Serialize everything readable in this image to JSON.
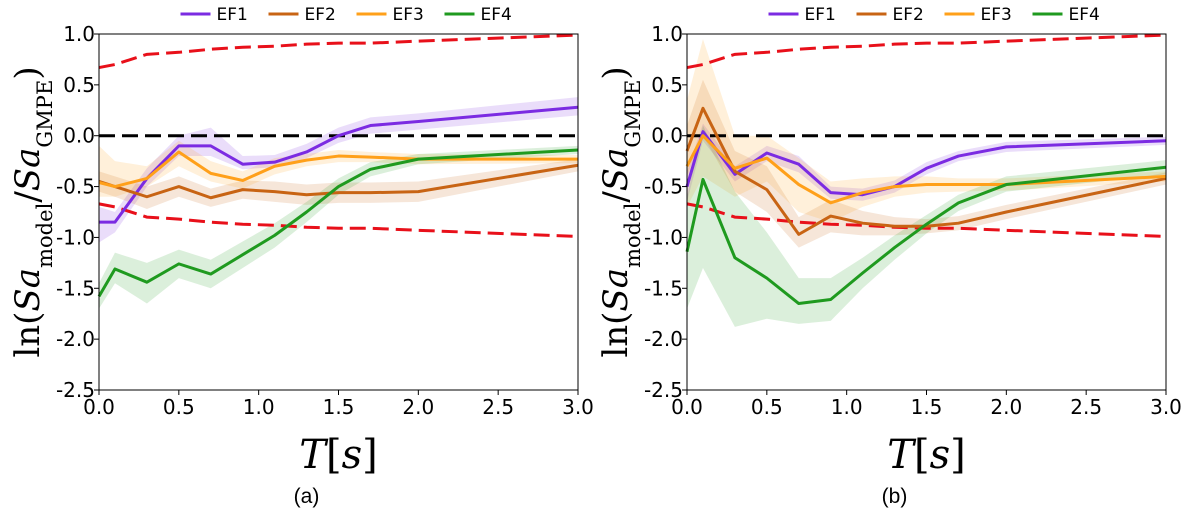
{
  "chart_data": [
    {
      "type": "line",
      "caption": "(a)",
      "xlabel": [
        {
          "text": "T",
          "italic": true
        },
        {
          "text": "["
        },
        {
          "text": "s",
          "italic": true
        },
        {
          "text": "]"
        }
      ],
      "ylabel": [
        {
          "text": "ln("
        },
        {
          "text": "Sa",
          "italic": true
        },
        {
          "text": "model",
          "sub": true
        },
        {
          "text": "/"
        },
        {
          "text": "Sa",
          "italic": true
        },
        {
          "text": "GMPE",
          "sub": true
        },
        {
          "text": ")"
        }
      ],
      "legend": "top",
      "xlim": [
        0,
        3
      ],
      "ylim": [
        -2.5,
        1.0
      ],
      "xticks": [
        {
          "value": 0,
          "label": "0.0"
        },
        {
          "value": 0.5,
          "label": "0.5"
        },
        {
          "value": 1,
          "label": "1.0"
        },
        {
          "value": 1.5,
          "label": "1.5"
        },
        {
          "value": 2,
          "label": "2.0"
        },
        {
          "value": 2.5,
          "label": "2.5"
        },
        {
          "value": 3,
          "label": "3.0"
        }
      ],
      "yticks": [
        {
          "value": -2.5,
          "label": "-2.5"
        },
        {
          "value": -2,
          "label": "-2.0"
        },
        {
          "value": -1.5,
          "label": "-1.5"
        },
        {
          "value": -1,
          "label": "-1.0"
        },
        {
          "value": -0.5,
          "label": "-0.5"
        },
        {
          "value": 0,
          "label": "0.0"
        },
        {
          "value": 0.5,
          "label": "0.5"
        },
        {
          "value": 1,
          "label": "1.0"
        }
      ],
      "x": [
        0,
        0.1,
        0.3,
        0.5,
        0.7,
        0.9,
        1.1,
        1.3,
        1.5,
        1.7,
        2.0,
        3.0
      ],
      "hline": {
        "value": 0,
        "color": "#000000"
      },
      "reference_lines": [
        {
          "color": "#e8101a",
          "values": [
            0.67,
            0.7,
            0.8,
            0.82,
            0.85,
            0.87,
            0.88,
            0.9,
            0.91,
            0.91,
            0.93,
            0.99
          ]
        },
        {
          "color": "#e8101a",
          "values": [
            -0.67,
            -0.7,
            -0.8,
            -0.82,
            -0.85,
            -0.87,
            -0.88,
            -0.9,
            -0.91,
            -0.91,
            -0.93,
            -0.99
          ]
        }
      ],
      "series": [
        {
          "name": "EF1",
          "color": "#7b2be2",
          "values": [
            -0.85,
            -0.85,
            -0.42,
            -0.1,
            -0.1,
            -0.28,
            -0.26,
            -0.16,
            0.0,
            0.1,
            0.14,
            0.28
          ],
          "lower": [
            -1.05,
            -0.95,
            -0.5,
            -0.2,
            -0.2,
            -0.33,
            -0.31,
            -0.22,
            -0.07,
            0.02,
            0.06,
            0.2
          ],
          "upper": [
            -0.7,
            -0.75,
            -0.32,
            0.0,
            0.08,
            -0.2,
            -0.19,
            -0.08,
            0.08,
            0.18,
            0.22,
            0.38
          ]
        },
        {
          "name": "EF2",
          "color": "#c86414",
          "values": [
            -0.45,
            -0.5,
            -0.6,
            -0.5,
            -0.61,
            -0.53,
            -0.55,
            -0.58,
            -0.56,
            -0.56,
            -0.55,
            -0.29
          ],
          "lower": [
            -0.55,
            -0.6,
            -0.72,
            -0.6,
            -0.7,
            -0.62,
            -0.65,
            -0.68,
            -0.66,
            -0.66,
            -0.65,
            -0.35
          ],
          "upper": [
            -0.35,
            -0.4,
            -0.5,
            -0.4,
            -0.52,
            -0.44,
            -0.45,
            -0.48,
            -0.46,
            -0.46,
            -0.45,
            -0.23
          ]
        },
        {
          "name": "EF3",
          "color": "#ffa01a",
          "values": [
            -0.46,
            -0.5,
            -0.42,
            -0.16,
            -0.37,
            -0.44,
            -0.3,
            -0.24,
            -0.2,
            -0.21,
            -0.23,
            -0.23
          ],
          "lower": [
            -0.6,
            -0.6,
            -0.5,
            -0.3,
            -0.45,
            -0.52,
            -0.38,
            -0.3,
            -0.26,
            -0.26,
            -0.28,
            -0.27
          ],
          "upper": [
            -0.1,
            -0.25,
            -0.3,
            -0.05,
            -0.25,
            -0.35,
            -0.22,
            -0.18,
            -0.14,
            -0.16,
            -0.18,
            -0.19
          ]
        },
        {
          "name": "EF4",
          "color": "#1f9a1f",
          "values": [
            -1.58,
            -1.31,
            -1.44,
            -1.26,
            -1.36,
            -1.17,
            -0.98,
            -0.75,
            -0.5,
            -0.33,
            -0.23,
            -0.14
          ],
          "lower": [
            -1.7,
            -1.45,
            -1.65,
            -1.4,
            -1.5,
            -1.3,
            -1.1,
            -0.85,
            -0.58,
            -0.4,
            -0.28,
            -0.18
          ],
          "upper": [
            -1.45,
            -1.15,
            -1.25,
            -1.12,
            -1.22,
            -1.04,
            -0.86,
            -0.65,
            -0.42,
            -0.26,
            -0.18,
            -0.1
          ]
        }
      ]
    },
    {
      "type": "line",
      "caption": "(b)",
      "xlabel": [
        {
          "text": "T",
          "italic": true
        },
        {
          "text": "["
        },
        {
          "text": "s",
          "italic": true
        },
        {
          "text": "]"
        }
      ],
      "ylabel": [
        {
          "text": "ln("
        },
        {
          "text": "Sa",
          "italic": true
        },
        {
          "text": "model",
          "sub": true
        },
        {
          "text": "/"
        },
        {
          "text": "Sa",
          "italic": true
        },
        {
          "text": "GMPE",
          "sub": true
        },
        {
          "text": ")"
        }
      ],
      "legend": "top",
      "xlim": [
        0,
        3
      ],
      "ylim": [
        -2.5,
        1.0
      ],
      "xticks": [
        {
          "value": 0,
          "label": "0.0"
        },
        {
          "value": 0.5,
          "label": "0.5"
        },
        {
          "value": 1,
          "label": "1.0"
        },
        {
          "value": 1.5,
          "label": "1.5"
        },
        {
          "value": 2,
          "label": "2.0"
        },
        {
          "value": 2.5,
          "label": "2.5"
        },
        {
          "value": 3,
          "label": "3.0"
        }
      ],
      "yticks": [
        {
          "value": -2.5,
          "label": "-2.5"
        },
        {
          "value": -2,
          "label": "-2.0"
        },
        {
          "value": -1.5,
          "label": "-1.5"
        },
        {
          "value": -1,
          "label": "-1.0"
        },
        {
          "value": -0.5,
          "label": "-0.5"
        },
        {
          "value": 0,
          "label": "0.0"
        },
        {
          "value": 0.5,
          "label": "0.5"
        },
        {
          "value": 1,
          "label": "1.0"
        }
      ],
      "x": [
        0,
        0.1,
        0.3,
        0.5,
        0.7,
        0.9,
        1.1,
        1.3,
        1.5,
        1.7,
        2.0,
        3.0
      ],
      "hline": {
        "value": 0,
        "color": "#000000"
      },
      "reference_lines": [
        {
          "color": "#e8101a",
          "values": [
            0.67,
            0.7,
            0.8,
            0.82,
            0.85,
            0.87,
            0.88,
            0.9,
            0.91,
            0.91,
            0.93,
            0.99
          ]
        },
        {
          "color": "#e8101a",
          "values": [
            -0.67,
            -0.7,
            -0.8,
            -0.82,
            -0.85,
            -0.87,
            -0.88,
            -0.9,
            -0.91,
            -0.91,
            -0.93,
            -0.99
          ]
        }
      ],
      "series": [
        {
          "name": "EF1",
          "color": "#7b2be2",
          "values": [
            -0.5,
            0.04,
            -0.38,
            -0.17,
            -0.28,
            -0.56,
            -0.58,
            -0.5,
            -0.32,
            -0.2,
            -0.11,
            -0.05
          ],
          "lower": [
            -0.65,
            -0.05,
            -0.45,
            -0.25,
            -0.36,
            -0.62,
            -0.64,
            -0.56,
            -0.38,
            -0.25,
            -0.16,
            -0.09
          ],
          "upper": [
            -0.35,
            0.12,
            -0.3,
            -0.1,
            -0.2,
            -0.5,
            -0.52,
            -0.44,
            -0.26,
            -0.15,
            -0.06,
            -0.01
          ]
        },
        {
          "name": "EF2",
          "color": "#c86414",
          "values": [
            -0.15,
            0.27,
            -0.35,
            -0.53,
            -0.97,
            -0.79,
            -0.86,
            -0.89,
            -0.89,
            -0.86,
            -0.75,
            -0.42
          ],
          "lower": [
            -0.4,
            0.0,
            -0.55,
            -0.75,
            -1.1,
            -0.95,
            -0.98,
            -0.98,
            -0.96,
            -0.93,
            -0.82,
            -0.48
          ],
          "upper": [
            0.1,
            0.55,
            -0.15,
            -0.3,
            -0.8,
            -0.63,
            -0.74,
            -0.8,
            -0.82,
            -0.79,
            -0.68,
            -0.36
          ]
        },
        {
          "name": "EF3",
          "color": "#ffa01a",
          "values": [
            -0.3,
            0.0,
            -0.32,
            -0.22,
            -0.48,
            -0.66,
            -0.56,
            -0.5,
            -0.48,
            -0.48,
            -0.48,
            -0.4
          ],
          "lower": [
            -0.7,
            -0.4,
            -0.6,
            -0.45,
            -0.75,
            -0.85,
            -0.7,
            -0.6,
            -0.56,
            -0.55,
            -0.54,
            -0.45
          ],
          "upper": [
            0.35,
            0.95,
            0.0,
            0.0,
            -0.22,
            -0.45,
            -0.42,
            -0.4,
            -0.4,
            -0.42,
            -0.42,
            -0.35
          ]
        },
        {
          "name": "EF4",
          "color": "#1f9a1f",
          "values": [
            -1.14,
            -0.43,
            -1.2,
            -1.4,
            -1.65,
            -1.61,
            -1.35,
            -1.1,
            -0.87,
            -0.66,
            -0.48,
            -0.31
          ],
          "lower": [
            -1.7,
            -1.3,
            -1.88,
            -1.8,
            -1.85,
            -1.82,
            -1.5,
            -1.22,
            -0.96,
            -0.74,
            -0.55,
            -0.38
          ],
          "upper": [
            -0.6,
            0.1,
            -0.55,
            -0.95,
            -1.4,
            -1.4,
            -1.2,
            -0.98,
            -0.78,
            -0.58,
            -0.4,
            -0.24
          ]
        }
      ]
    }
  ]
}
